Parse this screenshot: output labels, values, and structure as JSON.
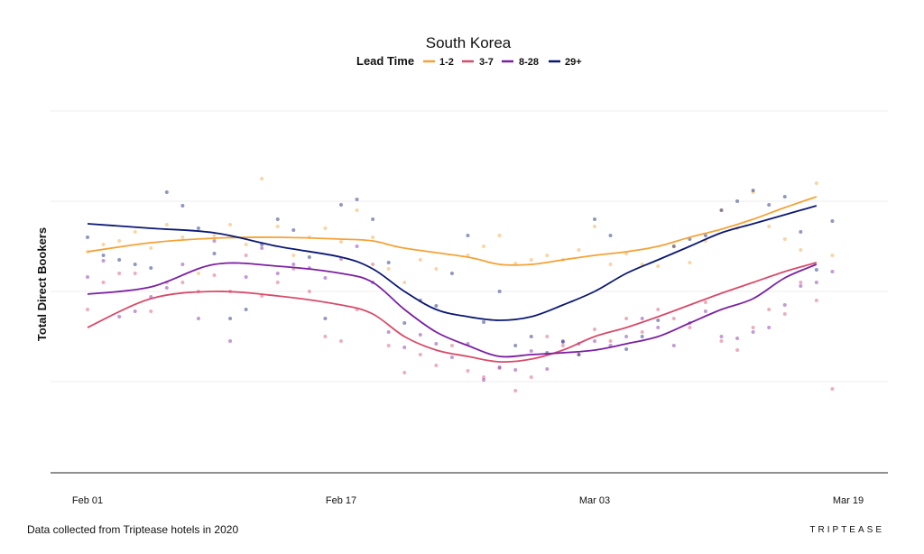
{
  "chart_data": {
    "type": "line",
    "title": "South Korea",
    "legend": {
      "title": "Lead Time",
      "placement": "top-center"
    },
    "xlabel": "",
    "ylabel": "Total Direct Bookers",
    "x_ticks": [
      "Feb 01",
      "Feb 17",
      "Mar 03",
      "Mar 19"
    ],
    "x_range_days": [
      0,
      48
    ],
    "y_ticks_shown": false,
    "grid": {
      "horizontal": true,
      "vertical": false
    },
    "series": [
      {
        "name": "1-2",
        "color": "#F4A236",
        "smooth": [
          [
            0,
            0.44
          ],
          [
            4,
            0.54
          ],
          [
            8,
            0.59
          ],
          [
            12,
            0.6
          ],
          [
            16,
            0.58
          ],
          [
            18,
            0.56
          ],
          [
            20,
            0.48
          ],
          [
            24,
            0.38
          ],
          [
            26,
            0.3
          ],
          [
            28,
            0.3
          ],
          [
            30,
            0.35
          ],
          [
            32,
            0.4
          ],
          [
            34,
            0.44
          ],
          [
            36,
            0.5
          ],
          [
            38,
            0.6
          ],
          [
            40,
            0.69
          ],
          [
            42,
            0.8
          ],
          [
            44,
            0.93
          ],
          [
            46,
            1.05
          ]
        ],
        "points": [
          [
            0,
            0.44
          ],
          [
            1,
            0.52
          ],
          [
            2,
            0.56
          ],
          [
            3,
            0.66
          ],
          [
            4,
            0.48
          ],
          [
            5,
            0.74
          ],
          [
            6,
            0.6
          ],
          [
            7,
            0.2
          ],
          [
            8,
            0.62
          ],
          [
            9,
            0.74
          ],
          [
            10,
            0.52
          ],
          [
            11,
            1.25
          ],
          [
            12,
            0.72
          ],
          [
            13,
            0.4
          ],
          [
            14,
            0.6
          ],
          [
            15,
            0.7
          ],
          [
            16,
            0.55
          ],
          [
            17,
            0.9
          ],
          [
            18,
            0.6
          ],
          [
            19,
            0.25
          ],
          [
            20,
            0.1
          ],
          [
            21,
            0.35
          ],
          [
            22,
            0.25
          ],
          [
            24,
            0.4
          ],
          [
            25,
            0.5
          ],
          [
            26,
            0.62
          ],
          [
            27,
            0.31
          ],
          [
            28,
            0.35
          ],
          [
            29,
            0.4
          ],
          [
            30,
            0.35
          ],
          [
            31,
            0.46
          ],
          [
            32,
            0.72
          ],
          [
            33,
            0.3
          ],
          [
            34,
            0.42
          ],
          [
            35,
            0.3
          ],
          [
            36,
            0.28
          ],
          [
            37,
            0.5
          ],
          [
            38,
            0.32
          ],
          [
            39,
            0.56
          ],
          [
            40,
            0.9
          ],
          [
            41,
            0.7
          ],
          [
            42,
            1.1
          ],
          [
            43,
            0.72
          ],
          [
            44,
            0.58
          ],
          [
            45,
            0.46
          ],
          [
            46,
            1.2
          ],
          [
            47,
            0.4
          ]
        ]
      },
      {
        "name": "3-7",
        "color": "#D84B6A",
        "smooth": [
          [
            0,
            -0.4
          ],
          [
            4,
            -0.08
          ],
          [
            8,
            0.0
          ],
          [
            12,
            -0.05
          ],
          [
            16,
            -0.15
          ],
          [
            18,
            -0.25
          ],
          [
            20,
            -0.5
          ],
          [
            22,
            -0.65
          ],
          [
            24,
            -0.72
          ],
          [
            26,
            -0.78
          ],
          [
            28,
            -0.75
          ],
          [
            30,
            -0.65
          ],
          [
            32,
            -0.5
          ],
          [
            34,
            -0.4
          ],
          [
            36,
            -0.28
          ],
          [
            38,
            -0.15
          ],
          [
            40,
            -0.02
          ],
          [
            42,
            0.1
          ],
          [
            44,
            0.22
          ],
          [
            46,
            0.32
          ]
        ],
        "points": [
          [
            0,
            -0.2
          ],
          [
            1,
            0.1
          ],
          [
            2,
            0.2
          ],
          [
            3,
            0.2
          ],
          [
            4,
            -0.22
          ],
          [
            5,
            0.1
          ],
          [
            6,
            0.1
          ],
          [
            7,
            0.0
          ],
          [
            8,
            0.18
          ],
          [
            9,
            0.0
          ],
          [
            10,
            0.4
          ],
          [
            11,
            -0.05
          ],
          [
            12,
            0.1
          ],
          [
            13,
            0.25
          ],
          [
            14,
            0.0
          ],
          [
            15,
            -0.5
          ],
          [
            16,
            -0.55
          ],
          [
            17,
            -0.2
          ],
          [
            18,
            0.3
          ],
          [
            19,
            -0.6
          ],
          [
            20,
            -0.9
          ],
          [
            21,
            -0.7
          ],
          [
            22,
            -0.82
          ],
          [
            23,
            -0.6
          ],
          [
            24,
            -0.88
          ],
          [
            25,
            -0.95
          ],
          [
            26,
            -0.85
          ],
          [
            27,
            -1.1
          ],
          [
            28,
            -0.95
          ],
          [
            29,
            -0.5
          ],
          [
            30,
            -0.6
          ],
          [
            31,
            -0.7
          ],
          [
            32,
            -0.42
          ],
          [
            33,
            -0.55
          ],
          [
            34,
            -0.3
          ],
          [
            35,
            -0.45
          ],
          [
            36,
            -0.2
          ],
          [
            37,
            -0.3
          ],
          [
            38,
            -0.4
          ],
          [
            39,
            -0.12
          ],
          [
            40,
            -0.55
          ],
          [
            41,
            -0.65
          ],
          [
            42,
            -0.4
          ],
          [
            43,
            -0.2
          ],
          [
            44,
            -0.25
          ],
          [
            45,
            0.1
          ],
          [
            46,
            -0.1
          ],
          [
            47,
            -1.08
          ]
        ]
      },
      {
        "name": "8-28",
        "color": "#7B1FA2",
        "smooth": [
          [
            0,
            -0.03
          ],
          [
            4,
            0.05
          ],
          [
            8,
            0.3
          ],
          [
            12,
            0.28
          ],
          [
            16,
            0.2
          ],
          [
            18,
            0.1
          ],
          [
            20,
            -0.2
          ],
          [
            22,
            -0.45
          ],
          [
            24,
            -0.6
          ],
          [
            26,
            -0.72
          ],
          [
            28,
            -0.7
          ],
          [
            30,
            -0.68
          ],
          [
            32,
            -0.65
          ],
          [
            34,
            -0.58
          ],
          [
            36,
            -0.5
          ],
          [
            38,
            -0.35
          ],
          [
            40,
            -0.2
          ],
          [
            42,
            -0.08
          ],
          [
            44,
            0.15
          ],
          [
            46,
            0.3
          ]
        ],
        "points": [
          [
            0,
            0.16
          ],
          [
            1,
            0.34
          ],
          [
            2,
            -0.28
          ],
          [
            3,
            -0.22
          ],
          [
            4,
            -0.06
          ],
          [
            5,
            0.04
          ],
          [
            6,
            0.3
          ],
          [
            7,
            -0.3
          ],
          [
            8,
            0.56
          ],
          [
            9,
            -0.55
          ],
          [
            10,
            0.16
          ],
          [
            11,
            0.48
          ],
          [
            12,
            0.2
          ],
          [
            13,
            0.3
          ],
          [
            14,
            0.26
          ],
          [
            15,
            0.15
          ],
          [
            16,
            0.36
          ],
          [
            17,
            0.5
          ],
          [
            18,
            0.1
          ],
          [
            19,
            -0.45
          ],
          [
            20,
            -0.62
          ],
          [
            21,
            -0.48
          ],
          [
            22,
            -0.58
          ],
          [
            23,
            -0.73
          ],
          [
            24,
            -0.58
          ],
          [
            25,
            -0.98
          ],
          [
            26,
            -0.84
          ],
          [
            27,
            -0.87
          ],
          [
            28,
            -0.66
          ],
          [
            29,
            -0.86
          ],
          [
            30,
            -0.55
          ],
          [
            31,
            -0.58
          ],
          [
            32,
            -0.55
          ],
          [
            33,
            -0.6
          ],
          [
            34,
            -0.5
          ],
          [
            35,
            -0.3
          ],
          [
            36,
            -0.4
          ],
          [
            37,
            -0.6
          ],
          [
            38,
            -0.35
          ],
          [
            39,
            -0.22
          ],
          [
            40,
            -0.5
          ],
          [
            41,
            -0.52
          ],
          [
            42,
            -0.45
          ],
          [
            43,
            -0.4
          ],
          [
            44,
            -0.15
          ],
          [
            45,
            0.06
          ],
          [
            46,
            0.1
          ],
          [
            47,
            0.22
          ]
        ]
      },
      {
        "name": "29+",
        "color": "#0A1873",
        "smooth": [
          [
            0,
            0.75
          ],
          [
            4,
            0.7
          ],
          [
            8,
            0.65
          ],
          [
            12,
            0.5
          ],
          [
            16,
            0.38
          ],
          [
            18,
            0.25
          ],
          [
            20,
            0.0
          ],
          [
            22,
            -0.2
          ],
          [
            24,
            -0.28
          ],
          [
            26,
            -0.32
          ],
          [
            28,
            -0.28
          ],
          [
            30,
            -0.15
          ],
          [
            32,
            0.0
          ],
          [
            34,
            0.2
          ],
          [
            36,
            0.35
          ],
          [
            38,
            0.5
          ],
          [
            40,
            0.65
          ],
          [
            42,
            0.75
          ],
          [
            44,
            0.85
          ],
          [
            46,
            0.95
          ]
        ],
        "points": [
          [
            0,
            0.6
          ],
          [
            1,
            0.4
          ],
          [
            2,
            0.35
          ],
          [
            3,
            0.3
          ],
          [
            4,
            0.26
          ],
          [
            5,
            1.1
          ],
          [
            6,
            0.95
          ],
          [
            7,
            0.7
          ],
          [
            8,
            0.42
          ],
          [
            9,
            -0.3
          ],
          [
            10,
            -0.2
          ],
          [
            11,
            0.52
          ],
          [
            12,
            0.8
          ],
          [
            13,
            0.68
          ],
          [
            14,
            0.38
          ],
          [
            15,
            -0.3
          ],
          [
            16,
            0.96
          ],
          [
            17,
            1.02
          ],
          [
            18,
            0.8
          ],
          [
            19,
            0.32
          ],
          [
            20,
            -0.35
          ],
          [
            21,
            -0.1
          ],
          [
            22,
            -0.16
          ],
          [
            23,
            0.2
          ],
          [
            24,
            0.62
          ],
          [
            25,
            -0.34
          ],
          [
            26,
            0.0
          ],
          [
            27,
            -0.6
          ],
          [
            28,
            -0.5
          ],
          [
            29,
            -0.68
          ],
          [
            30,
            -0.56
          ],
          [
            31,
            -0.7
          ],
          [
            32,
            0.8
          ],
          [
            33,
            0.62
          ],
          [
            34,
            -0.64
          ],
          [
            35,
            -0.5
          ],
          [
            36,
            -0.32
          ],
          [
            37,
            0.5
          ],
          [
            38,
            0.58
          ],
          [
            39,
            0.62
          ],
          [
            40,
            0.9
          ],
          [
            41,
            1.0
          ],
          [
            42,
            1.12
          ],
          [
            43,
            0.96
          ],
          [
            44,
            1.05
          ],
          [
            45,
            0.66
          ],
          [
            46,
            0.24
          ],
          [
            47,
            0.78
          ]
        ]
      }
    ]
  },
  "footer": {
    "note": "Data collected from Triptease hotels in 2020",
    "brand": "TRIPTEASE"
  }
}
